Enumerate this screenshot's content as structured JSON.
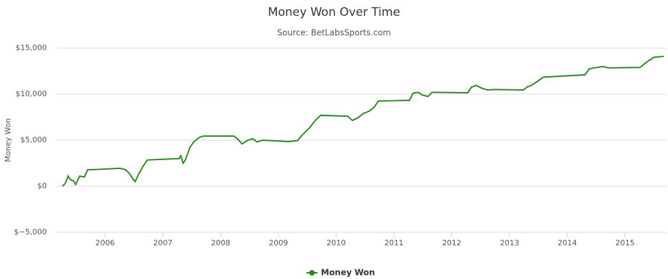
{
  "chart_data": {
    "type": "line",
    "title": "Money Won Over Time",
    "subtitle": "Source: BetLabsSports.com",
    "y_label": "Money Won",
    "x": [
      2005.26,
      2005.31,
      2005.36,
      2005.4,
      2005.45,
      2005.49,
      2005.56,
      2005.64,
      2005.7,
      2005.79,
      2006.26,
      2006.35,
      2006.42,
      2006.48,
      2006.52,
      2006.58,
      2006.66,
      2006.73,
      2007.28,
      2007.31,
      2007.35,
      2007.39,
      2007.47,
      2007.54,
      2007.63,
      2007.7,
      2008.23,
      2008.3,
      2008.37,
      2008.47,
      2008.56,
      2008.63,
      2008.73,
      2009.18,
      2009.33,
      2009.42,
      2009.54,
      2009.64,
      2009.73,
      2010.2,
      2010.28,
      2010.37,
      2010.47,
      2010.57,
      2010.66,
      2010.73,
      2011.27,
      2011.33,
      2011.42,
      2011.49,
      2011.59,
      2011.66,
      2012.28,
      2012.34,
      2012.42,
      2012.52,
      2012.62,
      2012.73,
      2013.24,
      2013.31,
      2013.38,
      2013.45,
      2013.59,
      2014.31,
      2014.38,
      2014.47,
      2014.62,
      2014.71,
      2015.26,
      2015.38,
      2015.5,
      2015.67
    ],
    "series": [
      {
        "name": "Money Won",
        "color": "#2a8a1e",
        "values": [
          0,
          300,
          1100,
          700,
          600,
          200,
          1100,
          1000,
          1800,
          1800,
          1950,
          1800,
          1400,
          800,
          500,
          1300,
          2200,
          2850,
          3000,
          3300,
          2500,
          2850,
          4250,
          4850,
          5300,
          5450,
          5450,
          5100,
          4600,
          5000,
          5150,
          4800,
          5000,
          4850,
          4950,
          5600,
          6350,
          7150,
          7700,
          7600,
          7150,
          7400,
          7900,
          8150,
          8600,
          9250,
          9330,
          10100,
          10200,
          9900,
          9750,
          10200,
          10150,
          10750,
          10950,
          10650,
          10450,
          10500,
          10450,
          10800,
          10950,
          11250,
          11850,
          12100,
          12750,
          12850,
          13000,
          12850,
          12900,
          13500,
          14000,
          14100
        ]
      }
    ],
    "xlim": [
      2005.17,
      2015.72
    ],
    "xticks": [
      2006,
      2007,
      2008,
      2009,
      2010,
      2011,
      2012,
      2013,
      2014,
      2015
    ],
    "ylim": [
      -5000,
      15000
    ],
    "yticks": [
      {
        "value": -5000,
        "label": "$−5,000"
      },
      {
        "value": 0,
        "label": "$0"
      },
      {
        "value": 5000,
        "label": "$5,000"
      },
      {
        "value": 10000,
        "label": "$10,000"
      },
      {
        "value": 15000,
        "label": "$15,000"
      }
    ],
    "grid": true,
    "legend": "bottom"
  }
}
